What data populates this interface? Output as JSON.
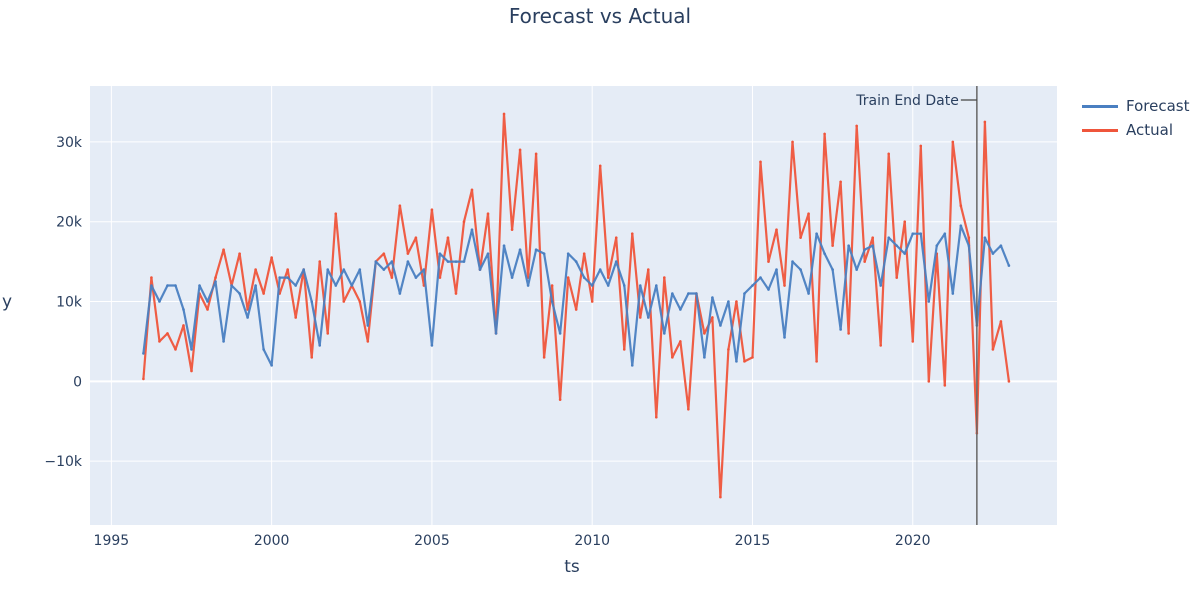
{
  "chart_data": {
    "type": "line",
    "title": "Forecast vs Actual",
    "xlabel": "ts",
    "ylabel": "y",
    "xlim": [
      "1994-05",
      "2024-07"
    ],
    "ylim": [
      -18000,
      37000
    ],
    "x_ticks": [
      "1995",
      "2000",
      "2005",
      "2010",
      "2015",
      "2020"
    ],
    "y_ticks": [
      {
        "value": -10000,
        "label": "−10k"
      },
      {
        "value": 0,
        "label": "0"
      },
      {
        "value": 10000,
        "label": "10k"
      },
      {
        "value": 20000,
        "label": "20k"
      },
      {
        "value": 30000,
        "label": "30k"
      }
    ],
    "grid": true,
    "legend_position": "top-right outside",
    "annotation": {
      "text": "Train End Date",
      "x": "2022-01"
    },
    "x": [
      "1996-01",
      "1996-04",
      "1996-07",
      "1996-10",
      "1997-01",
      "1997-04",
      "1997-07",
      "1997-10",
      "1998-01",
      "1998-04",
      "1998-07",
      "1998-10",
      "1999-01",
      "1999-04",
      "1999-07",
      "1999-10",
      "2000-01",
      "2000-04",
      "2000-07",
      "2000-10",
      "2001-01",
      "2001-04",
      "2001-07",
      "2001-10",
      "2002-01",
      "2002-04",
      "2002-07",
      "2002-10",
      "2003-01",
      "2003-04",
      "2003-07",
      "2003-10",
      "2004-01",
      "2004-04",
      "2004-07",
      "2004-10",
      "2005-01",
      "2005-04",
      "2005-07",
      "2005-10",
      "2006-01",
      "2006-04",
      "2006-07",
      "2006-10",
      "2007-01",
      "2007-04",
      "2007-07",
      "2007-10",
      "2008-01",
      "2008-04",
      "2008-07",
      "2008-10",
      "2009-01",
      "2009-04",
      "2009-07",
      "2009-10",
      "2010-01",
      "2010-04",
      "2010-07",
      "2010-10",
      "2011-01",
      "2011-04",
      "2011-07",
      "2011-10",
      "2012-01",
      "2012-04",
      "2012-07",
      "2012-10",
      "2013-01",
      "2013-04",
      "2013-07",
      "2013-10",
      "2014-01",
      "2014-04",
      "2014-07",
      "2014-10",
      "2015-01",
      "2015-04",
      "2015-07",
      "2015-10",
      "2016-01",
      "2016-04",
      "2016-07",
      "2016-10",
      "2017-01",
      "2017-04",
      "2017-07",
      "2017-10",
      "2018-01",
      "2018-04",
      "2018-07",
      "2018-10",
      "2019-01",
      "2019-04",
      "2019-07",
      "2019-10",
      "2020-01",
      "2020-04",
      "2020-07",
      "2020-10",
      "2021-01",
      "2021-04",
      "2021-07",
      "2021-10",
      "2022-01",
      "2022-04",
      "2022-07",
      "2022-10",
      "2023-01"
    ],
    "series": [
      {
        "name": "Forecast",
        "color": "#4a7fc1",
        "values": [
          3500,
          12000,
          10000,
          12000,
          12000,
          9000,
          4000,
          12000,
          10000,
          12500,
          5000,
          12000,
          11000,
          8000,
          12000,
          4000,
          2000,
          13000,
          13000,
          12000,
          14000,
          10000,
          4500,
          14000,
          12000,
          14000,
          12000,
          14000,
          7000,
          15000,
          14000,
          15000,
          11000,
          15000,
          13000,
          14000,
          4500,
          16000,
          15000,
          15000,
          15000,
          19000,
          14000,
          16000,
          6000,
          17000,
          13000,
          16500,
          12000,
          16500,
          16000,
          10000,
          6000,
          16000,
          15000,
          13000,
          12000,
          14000,
          12000,
          15000,
          12000,
          2000,
          12000,
          8000,
          12000,
          6000,
          11000,
          9000,
          11000,
          11000,
          3000,
          10500,
          7000,
          10000,
          2500,
          11000,
          12000,
          13000,
          11500,
          14000,
          5500,
          15000,
          14000,
          11000,
          18500,
          16000,
          14000,
          6500,
          17000,
          14000,
          16500,
          17000,
          12000,
          18000,
          17000,
          16000,
          18500,
          18500,
          10000,
          17000,
          18500,
          11000,
          19500,
          17000,
          7000,
          18000,
          16000,
          17000,
          14500
        ]
      },
      {
        "name": "Actual",
        "color": "#ef553b",
        "values": [
          300,
          13000,
          5000,
          6000,
          4000,
          7000,
          1300,
          11000,
          9000,
          13000,
          16500,
          12000,
          16000,
          9000,
          14000,
          11000,
          15500,
          11000,
          14000,
          8000,
          14000,
          3000,
          15000,
          6000,
          21000,
          10000,
          12000,
          10000,
          5000,
          15000,
          16000,
          13000,
          22000,
          16000,
          18000,
          12000,
          21500,
          13000,
          18000,
          11000,
          20000,
          24000,
          14000,
          21000,
          6000,
          33500,
          19000,
          29000,
          13000,
          28500,
          3000,
          12000,
          -2300,
          13000,
          9000,
          16000,
          10000,
          27000,
          13000,
          18000,
          4000,
          18500,
          8000,
          14000,
          -4500,
          13000,
          3000,
          5000,
          -3500,
          11000,
          6000,
          8000,
          -14500,
          4000,
          10000,
          2500,
          3000,
          27500,
          15000,
          19000,
          12000,
          30000,
          18000,
          21000,
          2500,
          31000,
          17000,
          25000,
          6000,
          32000,
          15000,
          18000,
          4500,
          28500,
          13000,
          20000,
          5000,
          29500,
          0,
          16000,
          -500,
          30000,
          22000,
          18000,
          -6500,
          32500,
          4000,
          7500,
          0
        ]
      }
    ]
  }
}
